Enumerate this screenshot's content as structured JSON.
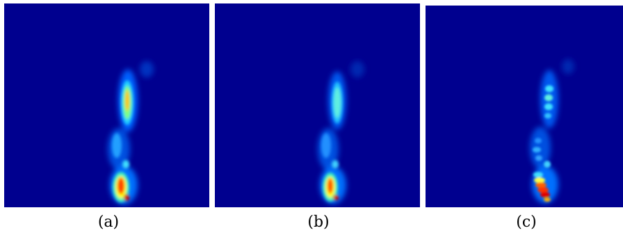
{
  "figure": {
    "colormap": "jet",
    "background_color": "#00008f",
    "panels": [
      {
        "id": "a",
        "caption": "(a)"
      },
      {
        "id": "b",
        "caption": "(b)"
      },
      {
        "id": "c",
        "caption": "(c)"
      }
    ]
  }
}
